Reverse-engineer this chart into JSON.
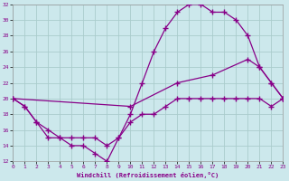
{
  "xlabel": "Windchill (Refroidissement éolien,°C)",
  "bg_color": "#cce8ec",
  "grid_color": "#aacccc",
  "line_color": "#880088",
  "ylim": [
    12,
    32
  ],
  "xlim": [
    0,
    23
  ],
  "yticks": [
    12,
    14,
    16,
    18,
    20,
    22,
    24,
    26,
    28,
    30,
    32
  ],
  "xticks": [
    0,
    1,
    2,
    3,
    4,
    5,
    6,
    7,
    8,
    9,
    10,
    11,
    12,
    13,
    14,
    15,
    16,
    17,
    18,
    19,
    20,
    21,
    22,
    23
  ],
  "line1_x": [
    0,
    1,
    2,
    3,
    4,
    5,
    6,
    7,
    8,
    9,
    10,
    11,
    12,
    13,
    14,
    15,
    16,
    17,
    18,
    19,
    20,
    21,
    22,
    23
  ],
  "line1_y": [
    20,
    19,
    17,
    15,
    15,
    14,
    14,
    13,
    12,
    15,
    18,
    22,
    26,
    29,
    31,
    32,
    32,
    31,
    31,
    30,
    28,
    24,
    22,
    20
  ],
  "line2_x": [
    0,
    10,
    14,
    17,
    20,
    21,
    22,
    23
  ],
  "line2_y": [
    20,
    19,
    22,
    23,
    25,
    24,
    22,
    20
  ],
  "line3_x": [
    0,
    1,
    2,
    3,
    4,
    5,
    6,
    7,
    8,
    9,
    10,
    11,
    12,
    13,
    14,
    15,
    16,
    17,
    18,
    19,
    20,
    21,
    22,
    23
  ],
  "line3_y": [
    20,
    19,
    17,
    16,
    15,
    15,
    15,
    15,
    14,
    15,
    17,
    18,
    18,
    19,
    20,
    20,
    20,
    20,
    20,
    20,
    20,
    20,
    19,
    20
  ]
}
